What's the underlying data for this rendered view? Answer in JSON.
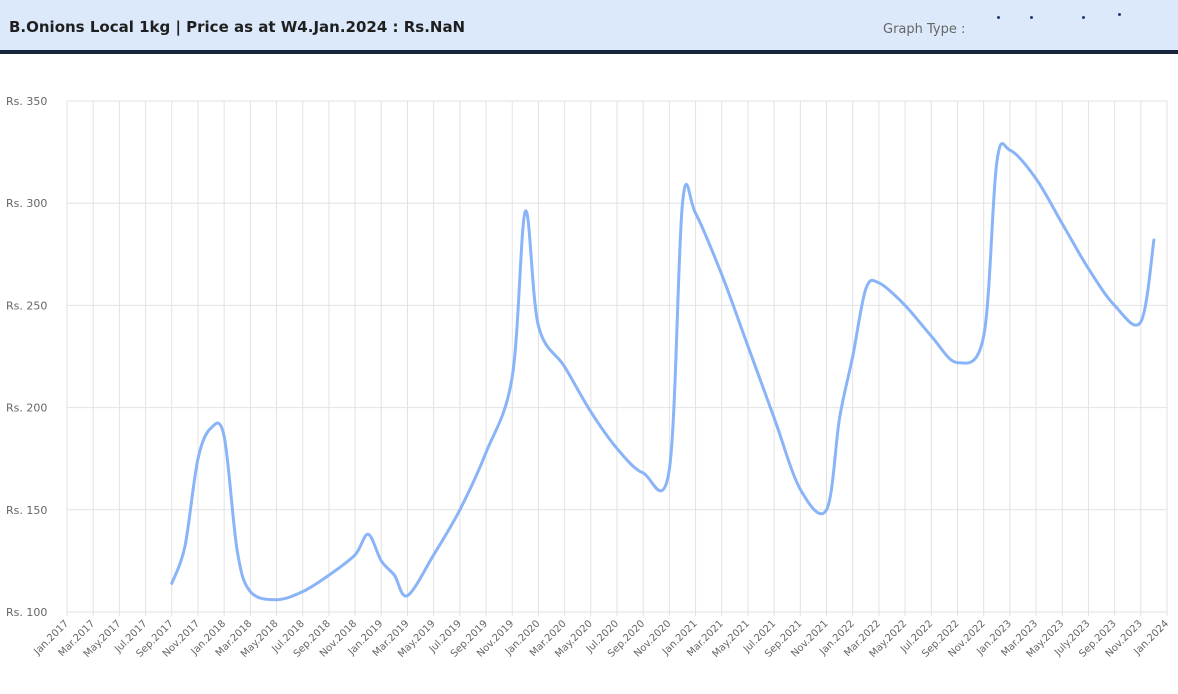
{
  "header": {
    "title": "B.Onions Local 1kg | Price as at W4.Jan.2024 : Rs.NaN",
    "graph_type_label": "Graph Type :"
  },
  "colors": {
    "header_bg": "#dbe9fb",
    "header_border": "#17243d",
    "line": "#8ab4f8",
    "grid": "#e2e2e2"
  },
  "chart_data": {
    "type": "line",
    "x_range": [
      "2017-01",
      "2024-01"
    ],
    "ylim": [
      100,
      350
    ],
    "y_ticks": [
      100,
      150,
      200,
      250,
      300,
      350
    ],
    "y_tick_prefix": "Rs. ",
    "grid": true,
    "legend": "none",
    "x_tick_labels": [
      "Jan.2017",
      "Mar.2017",
      "May.2017",
      "Jul.2017",
      "Sep.2017",
      "Nov.2017",
      "Jan.2018",
      "Mar.2018",
      "May.2018",
      "Jul.2018",
      "Sep.2018",
      "Nov.2018",
      "Jan.2019",
      "Mar.2019",
      "May.2019",
      "Jul.2019",
      "Sep.2019",
      "Nov.2019",
      "Jan.2020",
      "Mar.2020",
      "May.2020",
      "Jul.2020",
      "Sep.2020",
      "Nov.2020",
      "Jan.2021",
      "Mar.2021",
      "May.2021",
      "Jul.2021",
      "Sep.2021",
      "Nov.2021",
      "Jan.2022",
      "Mar.2022",
      "May.2022",
      "Jul.2022",
      "Sep.2022",
      "Nov.2022",
      "Jan.2023",
      "Mar.2023",
      "May.2023",
      "July.2023",
      "Sep.2023",
      "Nov.2023",
      "Jan.2024"
    ],
    "series": [
      {
        "points": [
          {
            "x": "2017-09",
            "y": 114
          },
          {
            "x": "2017-10",
            "y": 132
          },
          {
            "x": "2017-11",
            "y": 175
          },
          {
            "x": "2017-12",
            "y": 190
          },
          {
            "x": "2018-01",
            "y": 186
          },
          {
            "x": "2018-02",
            "y": 130
          },
          {
            "x": "2018-03",
            "y": 110
          },
          {
            "x": "2018-05",
            "y": 106
          },
          {
            "x": "2018-07",
            "y": 110
          },
          {
            "x": "2018-09",
            "y": 118
          },
          {
            "x": "2018-11",
            "y": 128
          },
          {
            "x": "2018-12",
            "y": 138
          },
          {
            "x": "2019-01",
            "y": 125
          },
          {
            "x": "2019-02",
            "y": 118
          },
          {
            "x": "2019-03",
            "y": 108
          },
          {
            "x": "2019-05",
            "y": 128
          },
          {
            "x": "2019-07",
            "y": 150
          },
          {
            "x": "2019-09",
            "y": 178
          },
          {
            "x": "2019-11",
            "y": 215
          },
          {
            "x": "2019-12",
            "y": 296
          },
          {
            "x": "2020-01",
            "y": 240
          },
          {
            "x": "2020-03",
            "y": 220
          },
          {
            "x": "2020-05",
            "y": 198
          },
          {
            "x": "2020-07",
            "y": 180
          },
          {
            "x": "2020-09",
            "y": 168
          },
          {
            "x": "2020-11",
            "y": 170
          },
          {
            "x": "2020-12",
            "y": 300
          },
          {
            "x": "2021-01",
            "y": 295
          },
          {
            "x": "2021-03",
            "y": 265
          },
          {
            "x": "2021-05",
            "y": 230
          },
          {
            "x": "2021-07",
            "y": 195
          },
          {
            "x": "2021-09",
            "y": 160
          },
          {
            "x": "2021-11",
            "y": 150
          },
          {
            "x": "2021-12",
            "y": 195
          },
          {
            "x": "2022-01",
            "y": 225
          },
          {
            "x": "2022-02",
            "y": 258
          },
          {
            "x": "2022-03",
            "y": 261
          },
          {
            "x": "2022-05",
            "y": 250
          },
          {
            "x": "2022-07",
            "y": 235
          },
          {
            "x": "2022-09",
            "y": 222
          },
          {
            "x": "2022-11",
            "y": 235
          },
          {
            "x": "2022-12",
            "y": 320
          },
          {
            "x": "2023-01",
            "y": 326
          },
          {
            "x": "2023-03",
            "y": 312
          },
          {
            "x": "2023-05",
            "y": 290
          },
          {
            "x": "2023-07",
            "y": 268
          },
          {
            "x": "2023-09",
            "y": 250
          },
          {
            "x": "2023-11",
            "y": 242
          },
          {
            "x": "2023-12",
            "y": 282
          }
        ]
      }
    ]
  }
}
